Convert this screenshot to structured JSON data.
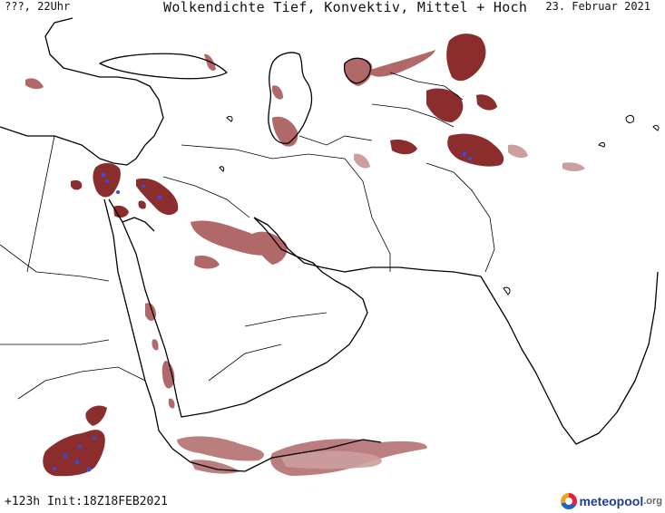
{
  "header": {
    "valid_time": "???, 22Uhr",
    "title": "Wolkendichte  Tief, Konvektiv, Mittel + Hoch",
    "date": "23. Februar 2021"
  },
  "footer": {
    "run_info": "+123h Init:18Z18FEB2021",
    "brand": "meteopool",
    "brand_tld": ".org"
  },
  "map": {
    "region": "Middle East / Arabian Peninsula / South Asia",
    "colors": {
      "background": "#ffffff",
      "coastline": "#000000",
      "border": "#000000",
      "cloud_dense": "#8b2d2d",
      "cloud_medium": "#b06868",
      "cloud_light": "#cc9f9f",
      "convective": "#3b4bd8"
    }
  }
}
